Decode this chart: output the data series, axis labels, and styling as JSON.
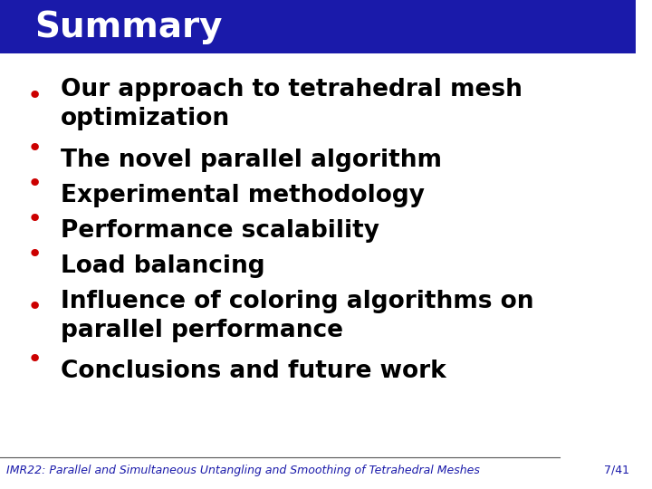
{
  "title": "Summary",
  "title_bg_color": "#1a1aaa",
  "title_text_color": "#ffffff",
  "title_fontsize": 28,
  "bullet_color": "#cc0000",
  "text_color": "#000000",
  "background_color": "#ffffff",
  "bullet_items": [
    "Our approach to tetrahedral mesh\noptimization",
    "The novel parallel algorithm",
    "Experimental methodology",
    "Performance scalability",
    "Load balancing",
    "Influence of coloring algorithms on\nparallel performance",
    "Conclusions and future work"
  ],
  "footer_text": "IMR22: Parallel and Simultaneous Untangling and Smoothing of Tetrahedral Meshes",
  "footer_page": "7/41",
  "footer_color": "#1a1aaa",
  "footer_fontsize": 9,
  "bullet_fontsize": 19,
  "line_color": "#555555"
}
